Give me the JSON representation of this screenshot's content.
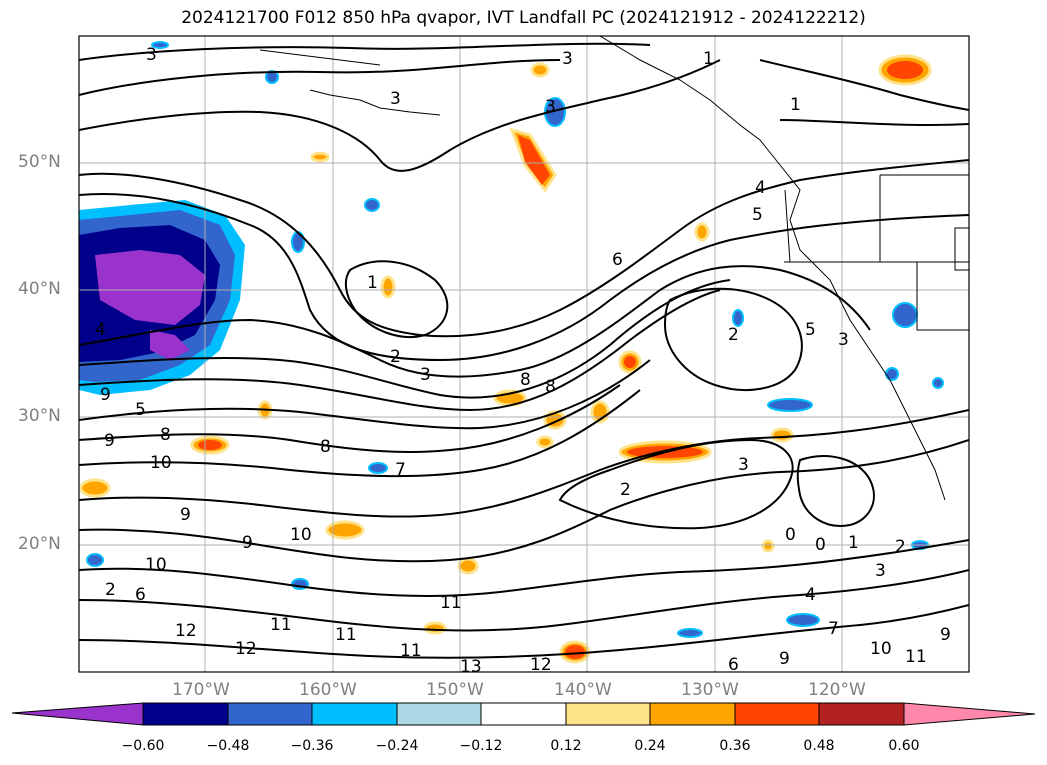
{
  "title": "2024121700 F012 850 hPa qvapor, IVT Landfall PC (2024121912 - 2024122212)",
  "axes": {
    "lat_labels": [
      "20°N",
      "30°N",
      "40°N",
      "50°N"
    ],
    "lon_labels": [
      "170°W",
      "160°W",
      "150°W",
      "140°W",
      "130°W",
      "120°W"
    ]
  },
  "colorbar": {
    "tick_labels": [
      "−0.60",
      "−0.48",
      "−0.36",
      "−0.24",
      "−0.12",
      "0.12",
      "0.24",
      "0.36",
      "0.48",
      "0.60"
    ],
    "colors": [
      "#9933cc",
      "#00008b",
      "#3366cc",
      "#00bfff",
      "#add8e6",
      "#ffffff",
      "#ffe38a",
      "#ffa500",
      "#ff4500",
      "#b22222",
      "#ff88aa"
    ],
    "extend": "both"
  },
  "contour_labels": [
    "1",
    "2",
    "3",
    "4",
    "5",
    "6",
    "7",
    "8",
    "9",
    "10",
    "11",
    "12",
    "13",
    "0"
  ]
}
